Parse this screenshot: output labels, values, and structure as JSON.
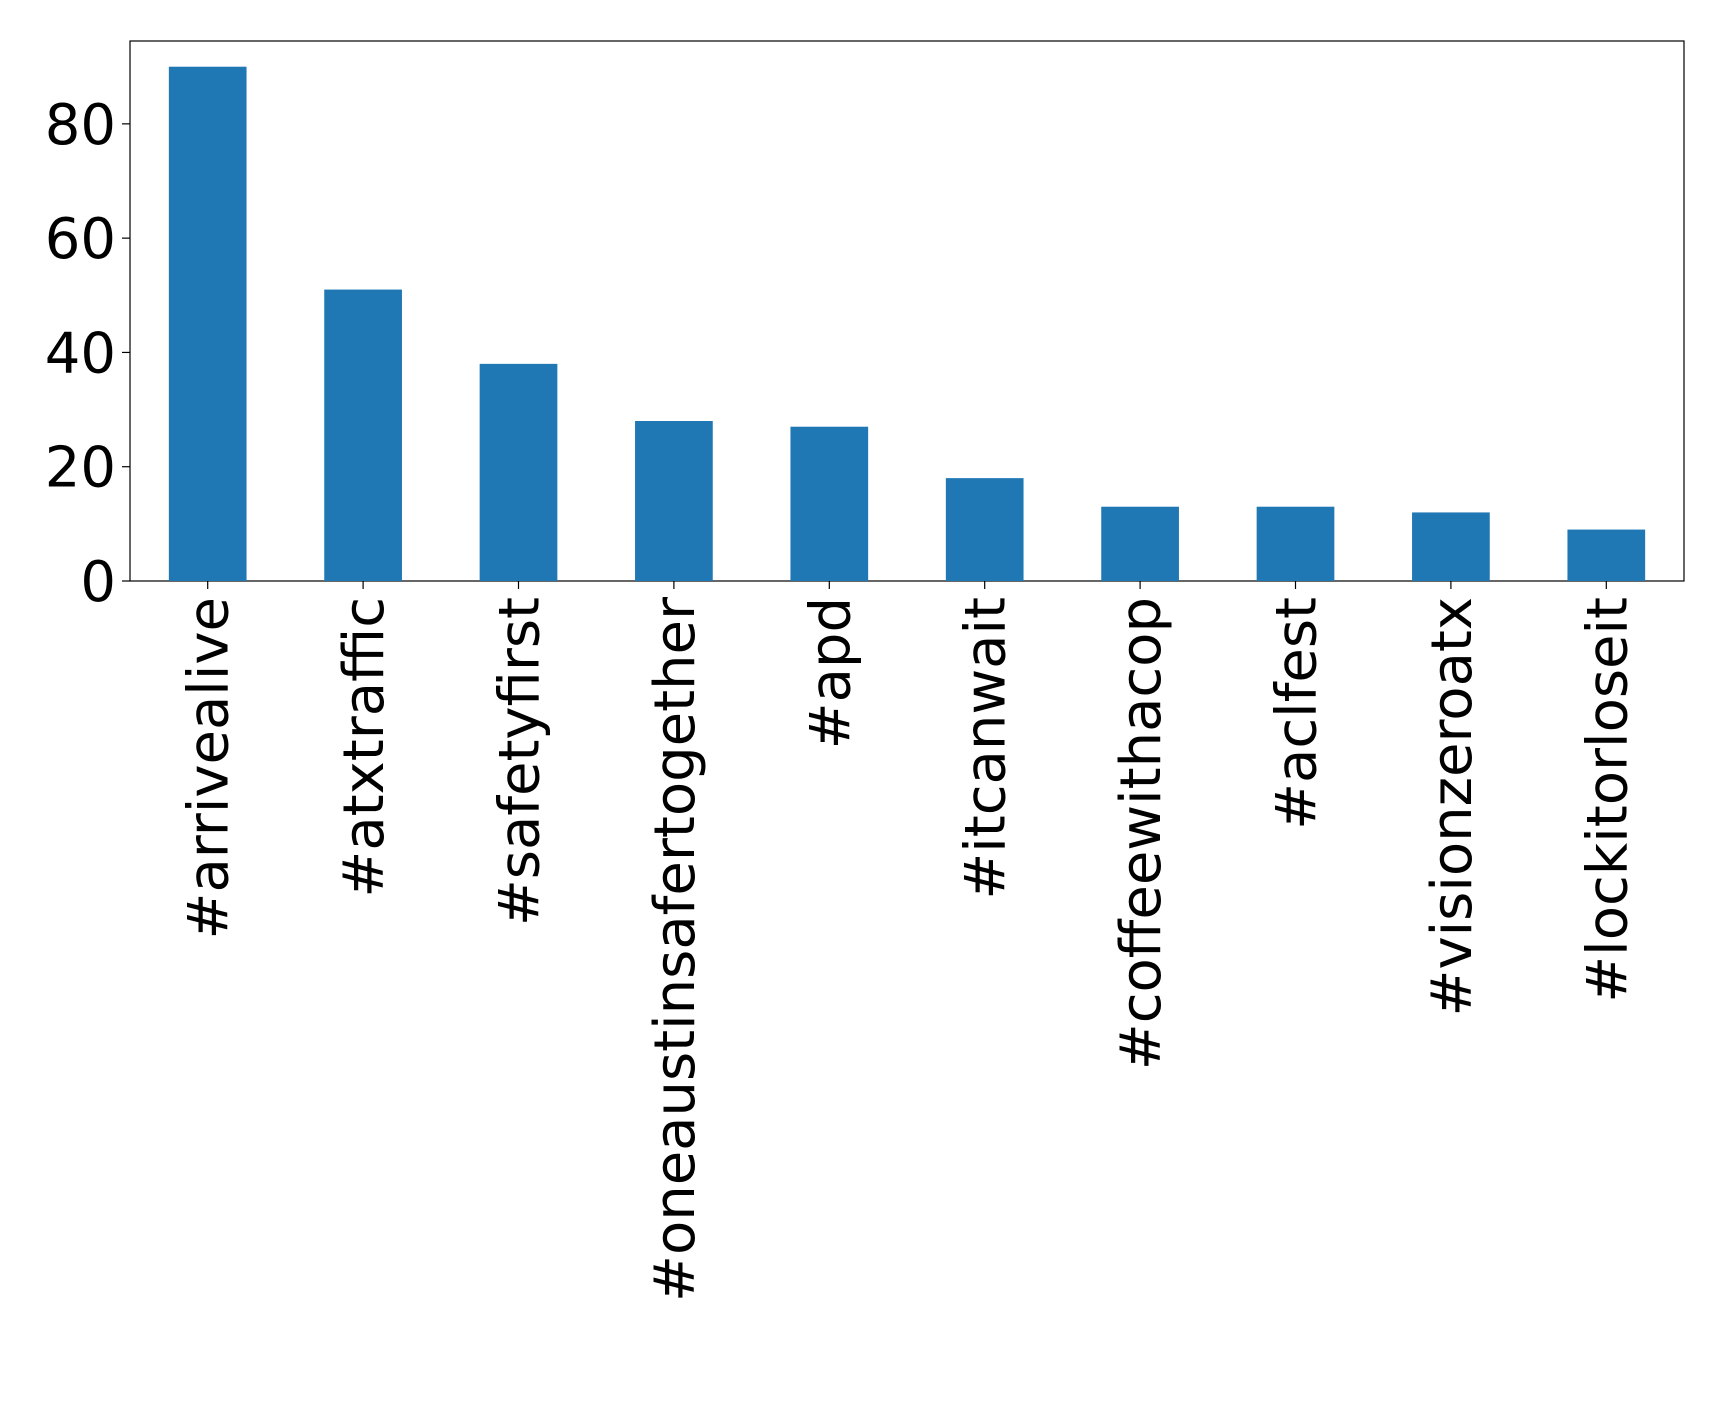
{
  "chart_data": {
    "type": "bar",
    "categories": [
      "#arrivealive",
      "#atxtraffic",
      "#safetyfirst",
      "#oneaustinsafertogether",
      "#apd",
      "#itcanwait",
      "#coffeewithacop",
      "#aclfest",
      "#visionzeroatx",
      "#lockitorloseit"
    ],
    "values": [
      90,
      51,
      38,
      28,
      27,
      18,
      13,
      13,
      12,
      9
    ],
    "color": "#1f77b4",
    "ylim": [
      0,
      94.5
    ],
    "yticks": [
      0,
      20,
      40,
      60,
      80
    ],
    "grid": false
  }
}
